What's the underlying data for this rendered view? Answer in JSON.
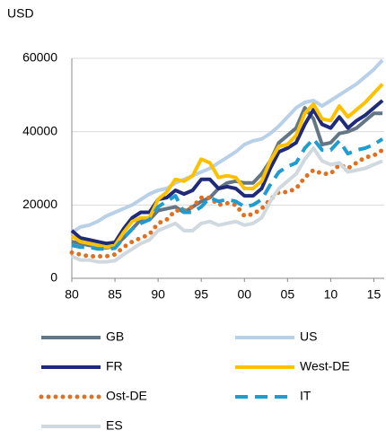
{
  "chart_data": {
    "type": "line",
    "ylabel": "USD",
    "x": [
      1980,
      1981,
      1982,
      1983,
      1984,
      1985,
      1986,
      1987,
      1988,
      1989,
      1990,
      1991,
      1992,
      1993,
      1994,
      1995,
      1996,
      1997,
      1998,
      1999,
      2000,
      2001,
      2002,
      2003,
      2004,
      2005,
      2006,
      2007,
      2008,
      2009,
      2010,
      2011,
      2012,
      2013,
      2014,
      2015,
      2016
    ],
    "xlim": [
      1980,
      2016.2
    ],
    "xticks": [
      {
        "value": 1980,
        "label": "80"
      },
      {
        "value": 1985,
        "label": "85"
      },
      {
        "value": 1990,
        "label": "90"
      },
      {
        "value": 1995,
        "label": "95"
      },
      {
        "value": 2000,
        "label": "00"
      },
      {
        "value": 2005,
        "label": "05"
      },
      {
        "value": 2010,
        "label": "10"
      },
      {
        "value": 2015,
        "label": "15"
      }
    ],
    "ylim": [
      0,
      60000
    ],
    "yticks": [
      0,
      20000,
      40000,
      60000
    ],
    "grid": true,
    "legend": "bottom",
    "series": [
      {
        "name": "GB",
        "color": "#637685",
        "style": "solid",
        "values": [
          10000,
          9500,
          9000,
          8700,
          8300,
          8800,
          11000,
          13500,
          16000,
          16000,
          18500,
          19000,
          19500,
          18000,
          19500,
          21000,
          22000,
          24500,
          26000,
          26500,
          26000,
          26000,
          28500,
          32000,
          37000,
          39000,
          41000,
          46500,
          43500,
          36500,
          37000,
          39500,
          40000,
          41000,
          43000,
          45000,
          45000
        ]
      },
      {
        "name": "US",
        "color": "#b8d0e8",
        "style": "solid",
        "values": [
          12500,
          14000,
          14500,
          15500,
          17000,
          18000,
          19000,
          20000,
          21500,
          23000,
          24000,
          24500,
          26000,
          27000,
          28000,
          29000,
          30000,
          31500,
          33000,
          34500,
          36500,
          37500,
          38000,
          39500,
          41500,
          44000,
          46500,
          48000,
          48500,
          47000,
          48500,
          50000,
          51500,
          53000,
          55000,
          57000,
          59500
        ]
      },
      {
        "name": "FR",
        "color": "#1f2a7a",
        "style": "solid",
        "values": [
          13000,
          11000,
          10500,
          10000,
          9500,
          9800,
          13500,
          16500,
          18000,
          18000,
          21500,
          22000,
          24000,
          23000,
          24000,
          27000,
          27000,
          24500,
          25000,
          24500,
          22500,
          22500,
          24500,
          30000,
          34500,
          35500,
          37000,
          42000,
          46000,
          42000,
          41000,
          44000,
          41000,
          43000,
          44500,
          46500,
          48500
        ]
      },
      {
        "name": "West-DE",
        "color": "#ffc000",
        "style": "solid",
        "values": [
          11500,
          10000,
          9500,
          9000,
          8500,
          9000,
          12500,
          15500,
          16500,
          16500,
          21500,
          23500,
          27000,
          26500,
          28000,
          32500,
          31500,
          27500,
          28000,
          27500,
          24500,
          24500,
          26500,
          32000,
          36000,
          36500,
          39000,
          45000,
          47500,
          43500,
          43000,
          47000,
          44000,
          46000,
          48000,
          50500,
          53000
        ]
      },
      {
        "name": "Ost-DE",
        "color": "#e07020",
        "style": "dotted",
        "values": [
          7000,
          6500,
          6000,
          6000,
          6000,
          6500,
          8500,
          10000,
          11000,
          12000,
          15000,
          16000,
          18500,
          18500,
          19500,
          22000,
          22000,
          20000,
          20500,
          20000,
          17000,
          17500,
          19000,
          21500,
          23500,
          23500,
          24500,
          27500,
          29500,
          28500,
          28500,
          31000,
          30000,
          31500,
          33000,
          33500,
          35000
        ]
      },
      {
        "name": "IT",
        "color": "#1f9cd0",
        "style": "dashed",
        "values": [
          9000,
          8500,
          8500,
          8000,
          8000,
          8200,
          11000,
          13500,
          15000,
          16000,
          19500,
          21000,
          22500,
          18000,
          18000,
          19500,
          22000,
          21000,
          21500,
          21000,
          19500,
          20000,
          21500,
          25500,
          29000,
          30500,
          31500,
          35500,
          38000,
          35000,
          35000,
          37500,
          34000,
          35000,
          35500,
          36500,
          38000
        ]
      },
      {
        "name": "ES",
        "color": "#d0d8e0",
        "style": "solid",
        "values": [
          6000,
          5000,
          5000,
          4500,
          4500,
          4800,
          6500,
          8000,
          9500,
          10500,
          13000,
          14000,
          15000,
          13000,
          13000,
          15000,
          15500,
          14500,
          15000,
          15500,
          14500,
          15000,
          16500,
          21000,
          24500,
          26500,
          28500,
          32500,
          35500,
          32000,
          31000,
          31500,
          29000,
          29500,
          30000,
          31000,
          32000
        ]
      }
    ]
  }
}
